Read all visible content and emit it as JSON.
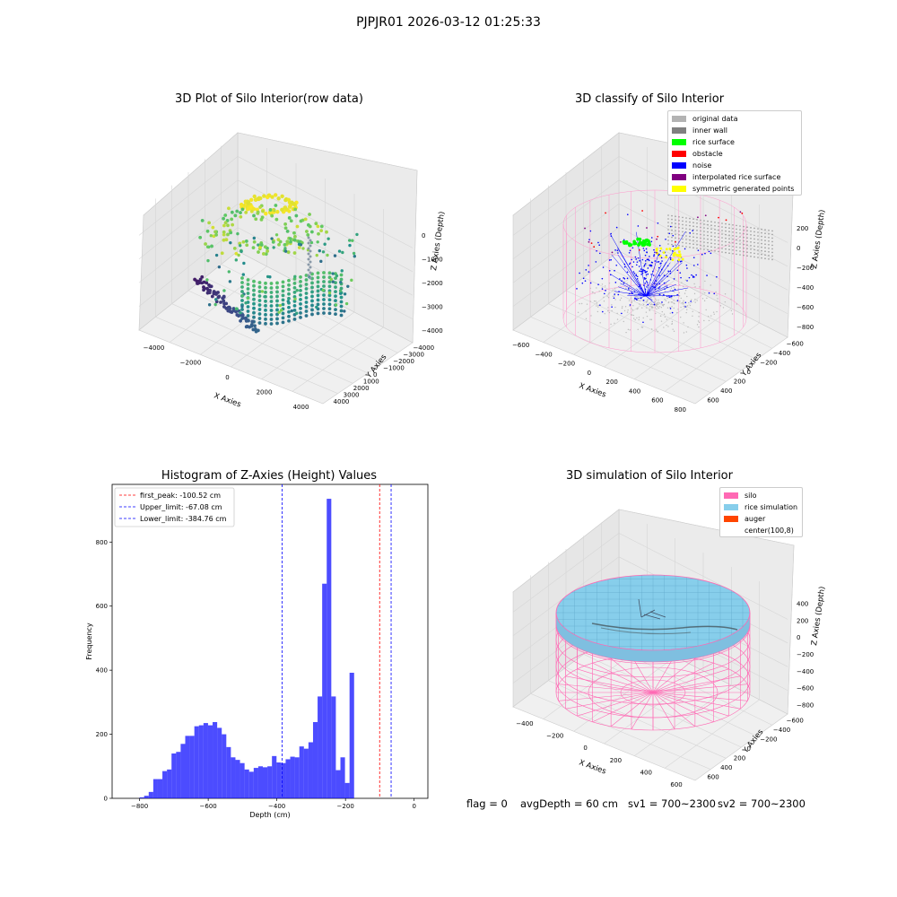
{
  "suptitle": "PJPJR01 2026-03-12 01:25:33",
  "panels": {
    "raw": {
      "title": "3D Plot of Silo Interior(row data)",
      "xlabel": "X Axies",
      "ylabel": "Y Axies",
      "zlabel": "Z Axies (Depth)",
      "x_ticks": [
        "-4000",
        "-2000",
        "0",
        "2000",
        "4000"
      ],
      "y_ticks": [
        "-4000",
        "-3000",
        "-2000",
        "-1000",
        "0",
        "1000",
        "2000",
        "3000",
        "4000"
      ],
      "z_ticks": [
        "0",
        "-1000",
        "-2000",
        "-3000",
        "-4000"
      ]
    },
    "classify": {
      "title": "3D classify of Silo Interior",
      "xlabel": "X Axies",
      "ylabel": "Y Axies",
      "zlabel": "Z Axies (Depth)",
      "x_ticks": [
        "-600",
        "-400",
        "-200",
        "0",
        "200",
        "400",
        "600",
        "800"
      ],
      "y_ticks": [
        "-600",
        "-400",
        "-200",
        "0",
        "200",
        "400",
        "600"
      ],
      "z_ticks": [
        "200",
        "0",
        "-200",
        "-400",
        "-600",
        "-800"
      ],
      "legend": [
        {
          "label": "original data",
          "color": "#b3b3b3"
        },
        {
          "label": "inner wall",
          "color": "#808080"
        },
        {
          "label": "rice surface",
          "color": "#00ff00"
        },
        {
          "label": "obstacle",
          "color": "#ff0000"
        },
        {
          "label": "noise",
          "color": "#0000ff"
        },
        {
          "label": "interpolated rice surface",
          "color": "#800080"
        },
        {
          "label": "symmetric generated points",
          "color": "#ffff00"
        }
      ]
    },
    "simulation": {
      "title": "3D simulation of Silo Interior",
      "xlabel": "X Axies",
      "ylabel": "Y Axies",
      "zlabel": "Z Axies (Depth)",
      "x_ticks": [
        "-400",
        "-200",
        "0",
        "200",
        "400",
        "600"
      ],
      "y_ticks": [
        "-600",
        "-400",
        "-200",
        "0",
        "200",
        "400",
        "600"
      ],
      "z_ticks": [
        "400",
        "200",
        "0",
        "-200",
        "-400",
        "-600",
        "-800"
      ],
      "legend": [
        {
          "label": "silo",
          "color": "#ff69b4"
        },
        {
          "label": "rice simulation",
          "color": "#87ceeb"
        },
        {
          "label": "auger",
          "color": "#ff4500"
        },
        {
          "label": "center(100,8)",
          "color": "#ffffff"
        }
      ]
    }
  },
  "chart_data": {
    "type": "bar",
    "title": "Histogram of Z-Axies (Height) Values",
    "xlabel": "Depth (cm)",
    "ylabel": "Frequency",
    "xlim": [
      -880,
      40
    ],
    "ylim": [
      0,
      980
    ],
    "x_ticks": [
      -800,
      -600,
      -400,
      -200,
      0
    ],
    "y_ticks": [
      0,
      200,
      400,
      600,
      800
    ],
    "bin_start": -800,
    "bin_width": 13.3,
    "values": [
      3,
      8,
      20,
      60,
      60,
      85,
      90,
      140,
      145,
      170,
      195,
      195,
      225,
      228,
      235,
      228,
      238,
      220,
      200,
      160,
      128,
      120,
      110,
      90,
      83,
      95,
      100,
      97,
      100,
      132,
      112,
      110,
      122,
      130,
      128,
      162,
      155,
      175,
      238,
      318,
      670,
      935,
      318,
      88,
      128,
      48,
      392
    ],
    "bar_color": "#0000ff",
    "bar_alpha": 0.7,
    "vlines": [
      {
        "label": "first_peak: -100.52 cm",
        "x": -100.52,
        "color": "#ff0000"
      },
      {
        "label": "Upper_limit: -67.08 cm",
        "x": -67.08,
        "color": "#0000ff"
      },
      {
        "label": "Lower_limit: -384.76 cm",
        "x": -384.76,
        "color": "#0000ff"
      }
    ],
    "legend_loc": "upper left"
  },
  "status": {
    "flag": "flag = 0",
    "avg": "avgDepth = 60 cm",
    "sv1": "sv1 = 700~2300",
    "sv2": "sv2 = 700~2300"
  }
}
